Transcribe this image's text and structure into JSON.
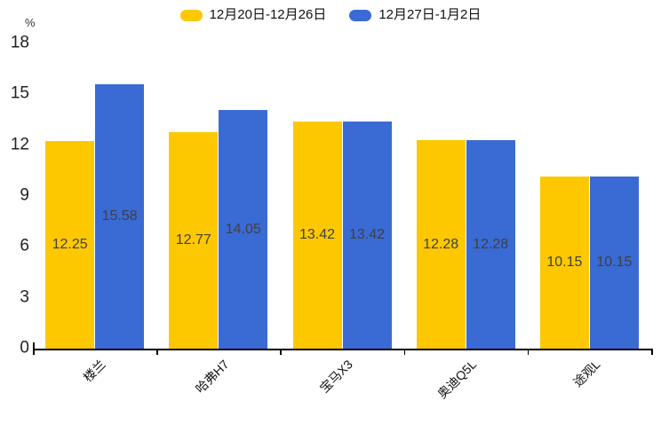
{
  "unit_label": "%",
  "chart_data": {
    "type": "bar",
    "title": "",
    "categories": [
      "楼兰",
      "哈弗H7",
      "宝马X3",
      "奥迪Q5L",
      "途观L"
    ],
    "series": [
      {
        "name": "12月20日-12月26日",
        "color": "#FDC800",
        "values": [
          12.25,
          12.77,
          13.42,
          12.28,
          10.15
        ]
      },
      {
        "name": "12月27日-1月2日",
        "color": "#3A6AD4",
        "values": [
          15.58,
          14.05,
          13.42,
          12.28,
          10.15
        ]
      }
    ],
    "xlabel": "",
    "ylabel": "%",
    "ylim": [
      0,
      18
    ],
    "yticks": [
      0,
      3,
      6,
      9,
      12,
      15,
      18
    ],
    "grid": false,
    "legend_position": "top",
    "value_labels": "inside-center",
    "x_label_rotation_deg": 45,
    "axis_color": "#000000",
    "text_color": "#222222",
    "value_label_color": "#404040"
  }
}
